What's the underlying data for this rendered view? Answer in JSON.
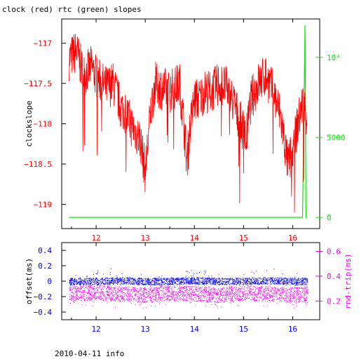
{
  "title": "clock (red) rtc (green) slopes",
  "footer": "2010-04-11 info",
  "colors": {
    "frame": "#000000",
    "clock": "#ff0000",
    "rtc": "#00ee00",
    "offset": "#0000ff",
    "rndtrip": "#ff00ff"
  },
  "chart_data": [
    {
      "type": "line",
      "xlim": [
        11.3,
        16.55
      ],
      "x_ticks": [
        "12",
        "13",
        "14",
        "15",
        "16"
      ],
      "x_tick_color": "#ff0000",
      "ylabel": "clockslope",
      "ylim": [
        -119.3,
        -116.7
      ],
      "y_ticks": [
        "-117",
        "-117.5",
        "-118",
        "-118.5",
        "-119"
      ],
      "y2lim": [
        -700,
        12400
      ],
      "y2_ticks": [
        "0",
        "5000",
        "10⁴"
      ],
      "series": [
        {
          "name": "clock",
          "axis": "left",
          "x": [
            11.45,
            11.6,
            11.75,
            11.9,
            12.05,
            12.2,
            12.35,
            12.5,
            12.6,
            12.7,
            12.8,
            12.9,
            13.0,
            13.1,
            13.2,
            13.3,
            13.5,
            13.7,
            13.8,
            13.85,
            13.9,
            14.0,
            14.1,
            14.2,
            14.35,
            14.5,
            14.65,
            14.8,
            14.95,
            15.05,
            15.15,
            15.3,
            15.45,
            15.6,
            15.75,
            15.85,
            15.9,
            16.0,
            16.1,
            16.2,
            16.3
          ],
          "y": [
            -117.2,
            -117.1,
            -117.4,
            -117.3,
            -117.45,
            -117.55,
            -117.5,
            -117.8,
            -117.85,
            -118.0,
            -118.1,
            -118.2,
            -118.6,
            -117.9,
            -117.5,
            -117.55,
            -117.6,
            -117.5,
            -118.1,
            -118.5,
            -118.1,
            -117.7,
            -117.7,
            -117.6,
            -117.6,
            -117.5,
            -117.55,
            -117.75,
            -118.0,
            -118.2,
            -117.7,
            -117.5,
            -117.4,
            -117.6,
            -117.9,
            -118.3,
            -118.5,
            -118.35,
            -118.0,
            -117.75,
            -117.9
          ]
        },
        {
          "name": "rtc",
          "axis": "right",
          "x": [
            11.45,
            16.1,
            16.2,
            16.25,
            16.27,
            16.3
          ],
          "y": [
            0,
            0,
            0,
            12000,
            0,
            0
          ]
        }
      ]
    },
    {
      "type": "scatter",
      "xlim": [
        11.3,
        16.55
      ],
      "x_ticks": [
        "12",
        "13",
        "14",
        "15",
        "16"
      ],
      "x_tick_color": "#0000ff",
      "ylabel": "offset(ms)",
      "ylim": [
        -0.5,
        0.5
      ],
      "y_ticks": [
        "0.4",
        "0.2",
        "0",
        "-0.2",
        "-0.4"
      ],
      "y2label": "rnd-trip(ms)",
      "y2lim": [
        0.05,
        0.67
      ],
      "y2_ticks": [
        "0.6",
        "0.4",
        "0.2"
      ],
      "series": [
        {
          "name": "offset",
          "axis": "left",
          "x": [
            11.45,
            12.0,
            12.5,
            13.0,
            13.5,
            14.0,
            14.5,
            15.0,
            15.5,
            16.0,
            16.3
          ],
          "y": [
            0.0,
            0.0,
            0.01,
            0.0,
            0.0,
            0.01,
            0.0,
            0.0,
            0.01,
            0.0,
            0.0
          ]
        },
        {
          "name": "rnd-trip",
          "axis": "right",
          "x": [
            11.45,
            12.0,
            12.5,
            13.0,
            13.5,
            14.0,
            14.5,
            15.0,
            15.5,
            16.0,
            16.3
          ],
          "y": [
            0.26,
            0.27,
            0.26,
            0.25,
            0.27,
            0.26,
            0.25,
            0.27,
            0.26,
            0.25,
            0.26
          ]
        }
      ]
    }
  ]
}
